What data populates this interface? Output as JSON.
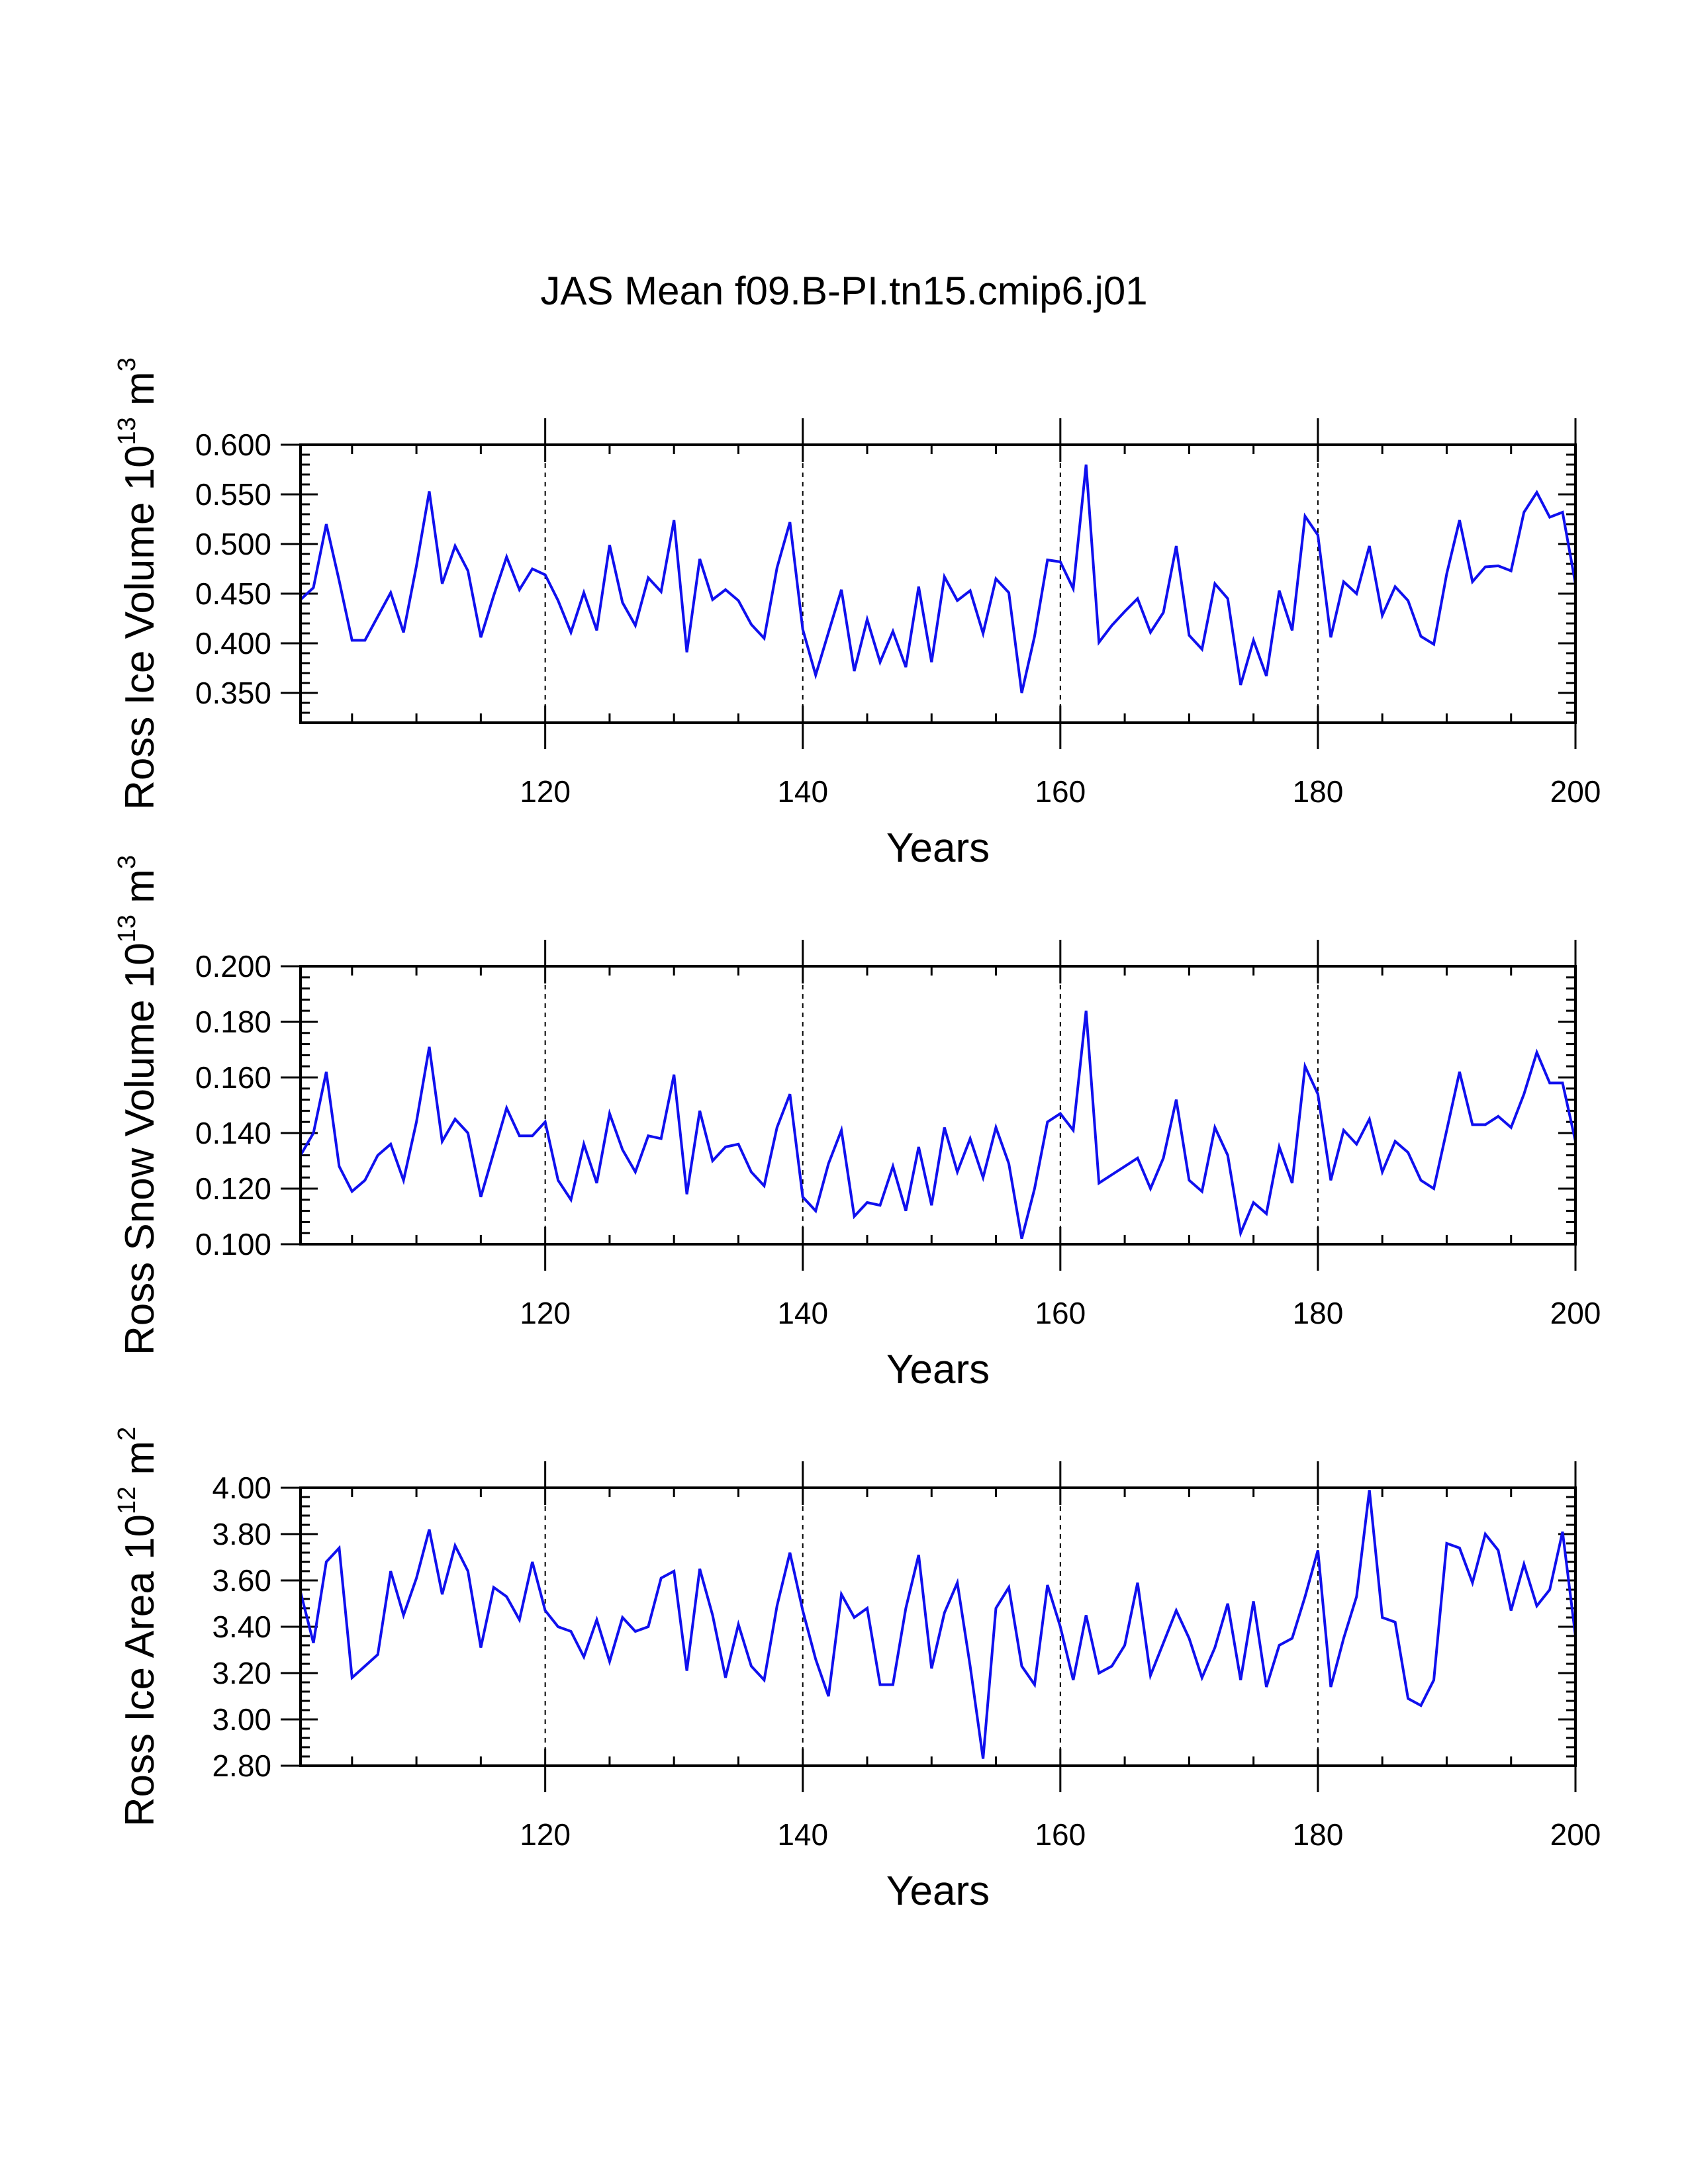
{
  "title": "JAS Mean f09.B-PI.tn15.cmip6.j01",
  "series_color": "#1010ee",
  "chart_data": [
    {
      "type": "line",
      "ylabel_main": "Ross Ice Volume 10",
      "ylabel_exp": "13",
      "ylabel_unit": " m",
      "ylabel_unit_exp": "3",
      "xlabel": "Years",
      "xlim": [
        101,
        200
      ],
      "ylim": [
        0.32,
        0.6
      ],
      "yticks": [
        0.35,
        0.4,
        0.45,
        0.5,
        0.55,
        0.6
      ],
      "ytick_labels": [
        "0.350",
        "0.400",
        "0.450",
        "0.500",
        "0.550",
        "0.600"
      ],
      "xticks": [
        120,
        140,
        160,
        180,
        200
      ],
      "xtick_labels": [
        "120",
        "140",
        "160",
        "180",
        "200"
      ],
      "dashed_x": [
        120,
        140,
        160,
        180
      ],
      "x_start": 101,
      "values": [
        0.444,
        0.456,
        0.52,
        0.463,
        0.403,
        0.403,
        0.427,
        0.451,
        0.411,
        0.478,
        0.553,
        0.46,
        0.498,
        0.473,
        0.406,
        0.448,
        0.487,
        0.454,
        0.475,
        0.469,
        0.443,
        0.411,
        0.451,
        0.413,
        0.499,
        0.441,
        0.418,
        0.466,
        0.452,
        0.524,
        0.391,
        0.485,
        0.444,
        0.454,
        0.443,
        0.419,
        0.405,
        0.476,
        0.522,
        0.414,
        0.368,
        0.411,
        0.454,
        0.372,
        0.424,
        0.381,
        0.412,
        0.376,
        0.457,
        0.381,
        0.467,
        0.443,
        0.453,
        0.41,
        0.465,
        0.451,
        0.35,
        0.407,
        0.484,
        0.482,
        0.455,
        0.58,
        0.401,
        0.418,
        0.432,
        0.445,
        0.411,
        0.431,
        0.498,
        0.408,
        0.394,
        0.46,
        0.445,
        0.358,
        0.403,
        0.367,
        0.453,
        0.413,
        0.528,
        0.509,
        0.406,
        0.462,
        0.45,
        0.498,
        0.428,
        0.457,
        0.443,
        0.407,
        0.399,
        0.47,
        0.524,
        0.462,
        0.477,
        0.478,
        0.473,
        0.532,
        0.552,
        0.527,
        0.532,
        0.46
      ]
    },
    {
      "type": "line",
      "ylabel_main": "Ross Snow Volume 10",
      "ylabel_exp": "13",
      "ylabel_unit": " m",
      "ylabel_unit_exp": "3",
      "xlabel": "Years",
      "xlim": [
        101,
        200
      ],
      "ylim": [
        0.1,
        0.2
      ],
      "yticks": [
        0.1,
        0.12,
        0.14,
        0.16,
        0.18,
        0.2
      ],
      "ytick_labels": [
        "0.100",
        "0.120",
        "0.140",
        "0.160",
        "0.180",
        "0.200"
      ],
      "xticks": [
        120,
        140,
        160,
        180,
        200
      ],
      "xtick_labels": [
        "120",
        "140",
        "160",
        "180",
        "200"
      ],
      "dashed_x": [
        120,
        140,
        160,
        180
      ],
      "x_start": 101,
      "values": [
        0.132,
        0.14,
        0.162,
        0.128,
        0.119,
        0.123,
        0.132,
        0.136,
        0.123,
        0.144,
        0.171,
        0.137,
        0.145,
        0.14,
        0.117,
        0.133,
        0.149,
        0.139,
        0.139,
        0.144,
        0.123,
        0.116,
        0.136,
        0.122,
        0.147,
        0.134,
        0.126,
        0.139,
        0.138,
        0.161,
        0.118,
        0.148,
        0.13,
        0.135,
        0.136,
        0.126,
        0.121,
        0.142,
        0.154,
        0.117,
        0.112,
        0.129,
        0.141,
        0.11,
        0.115,
        0.114,
        0.128,
        0.112,
        0.135,
        0.114,
        0.142,
        0.126,
        0.138,
        0.124,
        0.142,
        0.129,
        0.102,
        0.12,
        0.144,
        0.147,
        0.141,
        0.184,
        0.122,
        0.125,
        0.128,
        0.131,
        0.12,
        0.131,
        0.152,
        0.123,
        0.119,
        0.142,
        0.132,
        0.104,
        0.115,
        0.111,
        0.135,
        0.122,
        0.164,
        0.154,
        0.123,
        0.141,
        0.136,
        0.145,
        0.126,
        0.137,
        0.133,
        0.123,
        0.12,
        0.141,
        0.162,
        0.143,
        0.143,
        0.146,
        0.142,
        0.154,
        0.169,
        0.158,
        0.158,
        0.137
      ]
    },
    {
      "type": "line",
      "ylabel_main": "Ross Ice Area 10",
      "ylabel_exp": "12",
      "ylabel_unit": " m",
      "ylabel_unit_exp": "2",
      "xlabel": "Years",
      "xlim": [
        101,
        200
      ],
      "ylim": [
        2.8,
        4.0
      ],
      "yticks": [
        2.8,
        3.0,
        3.2,
        3.4,
        3.6,
        3.8,
        4.0
      ],
      "ytick_labels": [
        "2.80",
        "3.00",
        "3.20",
        "3.40",
        "3.60",
        "3.80",
        "4.00"
      ],
      "xticks": [
        120,
        140,
        160,
        180,
        200
      ],
      "xtick_labels": [
        "120",
        "140",
        "160",
        "180",
        "200"
      ],
      "dashed_x": [
        120,
        140,
        160,
        180
      ],
      "x_start": 101,
      "values": [
        3.55,
        3.33,
        3.68,
        3.74,
        3.18,
        3.23,
        3.28,
        3.64,
        3.45,
        3.61,
        3.82,
        3.54,
        3.75,
        3.64,
        3.31,
        3.57,
        3.53,
        3.43,
        3.68,
        3.47,
        3.4,
        3.38,
        3.27,
        3.43,
        3.25,
        3.44,
        3.38,
        3.4,
        3.61,
        3.64,
        3.21,
        3.65,
        3.45,
        3.18,
        3.41,
        3.23,
        3.17,
        3.49,
        3.72,
        3.47,
        3.26,
        3.1,
        3.54,
        3.44,
        3.48,
        3.15,
        3.15,
        3.48,
        3.71,
        3.22,
        3.46,
        3.59,
        3.23,
        2.83,
        3.48,
        3.57,
        3.23,
        3.15,
        3.58,
        3.4,
        3.17,
        3.45,
        3.2,
        3.23,
        3.32,
        3.59,
        3.19,
        3.33,
        3.47,
        3.35,
        3.18,
        3.31,
        3.5,
        3.17,
        3.51,
        3.14,
        3.32,
        3.35,
        3.53,
        3.73,
        3.14,
        3.35,
        3.53,
        3.99,
        3.44,
        3.42,
        3.09,
        3.06,
        3.17,
        3.76,
        3.74,
        3.59,
        3.8,
        3.73,
        3.47,
        3.67,
        3.49,
        3.56,
        3.81,
        3.36
      ]
    }
  ]
}
